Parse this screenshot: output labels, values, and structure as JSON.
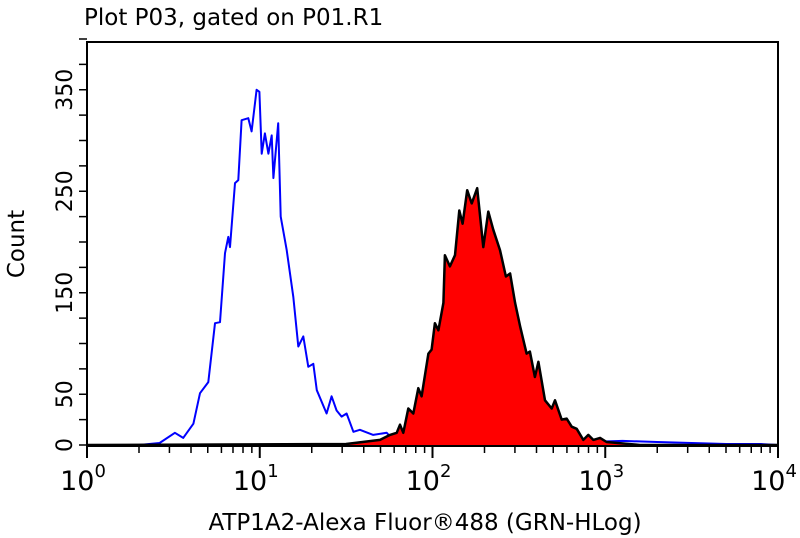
{
  "chart_data": {
    "type": "line",
    "title": "Plot P03, gated on P01.R1",
    "xlabel": "ATP1A2-Alexa Fluor®488 (GRN-HLog)",
    "ylabel": "Count",
    "x_scale": "log",
    "xlim": [
      1,
      10000
    ],
    "ylim": [
      0,
      400
    ],
    "x_tick_labels": [
      {
        "base": "10",
        "exp": "0"
      },
      {
        "base": "10",
        "exp": "1"
      },
      {
        "base": "10",
        "exp": "2"
      },
      {
        "base": "10",
        "exp": "3"
      },
      {
        "base": "10",
        "exp": "4"
      }
    ],
    "y_tick_labels": [
      "0",
      "50",
      "150",
      "250",
      "350"
    ],
    "y_labeled_values": [
      0,
      50,
      150,
      250,
      350
    ],
    "y_minor_step": 25,
    "grid": false,
    "series": [
      {
        "style": "outline",
        "color": "#0000ff",
        "fill": "none",
        "log10_x": [
          0.0,
          0.3,
          0.42,
          0.509,
          0.557,
          0.616,
          0.654,
          0.702,
          0.741,
          0.77,
          0.799,
          0.818,
          0.828,
          0.857,
          0.876,
          0.895,
          0.934,
          0.953,
          0.982,
          0.998,
          1.011,
          1.03,
          1.05,
          1.069,
          1.079,
          1.107,
          1.121,
          1.156,
          1.194,
          1.223,
          1.252,
          1.281,
          1.31,
          1.33,
          1.387,
          1.416,
          1.445,
          1.474,
          1.503,
          1.542,
          1.58,
          1.657,
          1.735,
          1.773,
          1.9,
          2.1,
          2.4,
          2.7,
          2.9,
          3.1,
          3.3,
          3.5,
          3.7,
          3.9,
          4.0
        ],
        "counts": [
          0,
          0,
          2,
          12,
          7,
          21,
          51,
          62,
          120,
          121,
          189,
          205,
          195,
          258,
          261,
          320,
          322,
          309,
          350,
          348,
          287,
          307,
          287,
          305,
          263,
          317,
          225,
          192,
          146,
          97,
          107,
          77,
          80,
          54,
          31,
          48,
          34,
          28,
          31,
          13,
          15,
          10,
          12,
          5,
          3,
          2,
          1,
          2,
          3,
          4,
          3,
          2,
          1,
          1,
          0
        ]
      },
      {
        "style": "filled",
        "color": "#000000",
        "fill": "#ff0000",
        "log10_x": [
          0.0,
          1.5,
          1.696,
          1.754,
          1.793,
          1.812,
          1.831,
          1.86,
          1.889,
          1.918,
          1.937,
          1.976,
          1.995,
          2.014,
          2.034,
          2.063,
          2.072,
          2.101,
          2.13,
          2.155,
          2.174,
          2.201,
          2.227,
          2.259,
          2.294,
          2.323,
          2.352,
          2.391,
          2.425,
          2.449,
          2.478,
          2.507,
          2.545,
          2.564,
          2.593,
          2.613,
          2.651,
          2.69,
          2.709,
          2.748,
          2.777,
          2.806,
          2.835,
          2.873,
          2.902,
          2.931,
          2.97,
          3.008,
          3.2,
          4.0
        ],
        "counts": [
          0,
          1,
          5,
          10,
          12,
          20,
          12,
          36,
          31,
          56,
          48,
          90,
          94,
          120,
          113,
          140,
          187,
          176,
          187,
          231,
          218,
          251,
          238,
          253,
          195,
          230,
          212,
          192,
          166,
          169,
          140,
          117,
          90,
          92,
          67,
          82,
          44,
          36,
          44,
          25,
          26,
          18,
          16,
          5,
          10,
          5,
          7,
          3,
          0,
          0
        ]
      }
    ]
  }
}
